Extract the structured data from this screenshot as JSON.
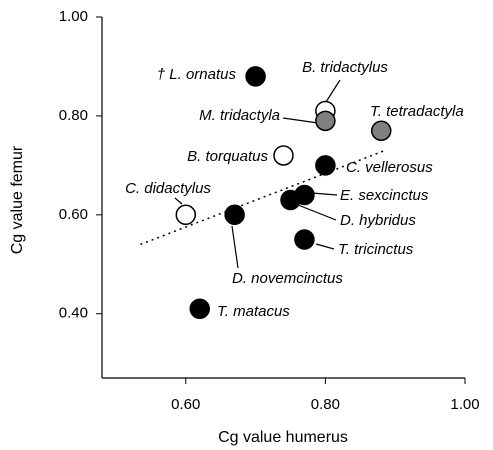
{
  "chart_data": {
    "type": "scatter",
    "x_label": "Cg value humerus",
    "y_label": "Cg value femur",
    "xlim": [
      0.48,
      1.0
    ],
    "ylim": [
      0.27,
      1.0
    ],
    "xticks": [
      {
        "value": 0.6,
        "label": "0.60"
      },
      {
        "value": 0.8,
        "label": "0.80"
      },
      {
        "value": 1.0,
        "label": "1.00"
      }
    ],
    "yticks": [
      {
        "value": 0.4,
        "label": "0.40"
      },
      {
        "value": 0.6,
        "label": "0.60"
      },
      {
        "value": 0.8,
        "label": "0.80"
      },
      {
        "value": 1.0,
        "label": "1.00"
      }
    ],
    "labels": [
      "† L. ornatus",
      "B. tridactylus",
      "M. tridactyla",
      "T. tetradactyla",
      "B. torquatus",
      "C. vellerosus",
      "E. sexcinctus",
      "D. hybridus",
      "C. didactylus",
      "D. novemcinctus",
      "T. tricinctus",
      "T. matacus"
    ],
    "x": [
      0.7,
      0.8,
      0.8,
      0.88,
      0.74,
      0.8,
      0.77,
      0.75,
      0.6,
      0.67,
      0.77,
      0.62
    ],
    "values": [
      0.88,
      0.81,
      0.79,
      0.77,
      0.72,
      0.7,
      0.64,
      0.63,
      0.6,
      0.6,
      0.55,
      0.41
    ],
    "colors": [
      "#000000",
      "#ffffff",
      "#808080",
      "#808080",
      "#ffffff",
      "#000000",
      "#000000",
      "#000000",
      "#ffffff",
      "#000000",
      "#000000",
      "#000000"
    ],
    "trend_line": {
      "x": [
        0.535,
        0.885
      ],
      "y": [
        0.54,
        0.73
      ]
    }
  }
}
